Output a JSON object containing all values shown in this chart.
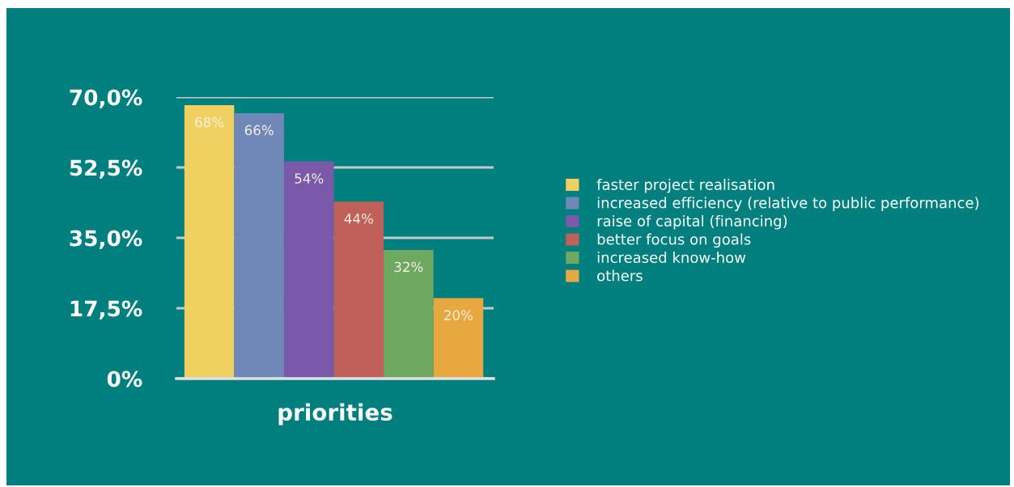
{
  "chart_data": {
    "type": "bar",
    "categories": [
      null
    ],
    "series": [
      {
        "name": "faster project realisation",
        "color": "#f0d060",
        "values": [
          68
        ],
        "value_labels": [
          "68%"
        ]
      },
      {
        "name": "increased efficiency (relative to public performance)",
        "color": "#6f88b8",
        "values": [
          66
        ],
        "value_labels": [
          "66%"
        ]
      },
      {
        "name": "raise of capital (financing)",
        "color": "#7a58aa",
        "values": [
          54
        ],
        "value_labels": [
          "54%"
        ]
      },
      {
        "name": "better focus on goals",
        "color": "#c0605a",
        "values": [
          44
        ],
        "value_labels": [
          "44%"
        ]
      },
      {
        "name": "increased know-how",
        "color": "#6fa860",
        "values": [
          32
        ],
        "value_labels": [
          "32%"
        ]
      },
      {
        "name": "others",
        "color": "#e8a840",
        "values": [
          20
        ],
        "value_labels": [
          "20%"
        ]
      }
    ],
    "xlabel": "priorities",
    "ylim": [
      0,
      70
    ],
    "yticks": [
      {
        "value": 0,
        "label": "0%"
      },
      {
        "value": 17.5,
        "label": "17,5%"
      },
      {
        "value": 35,
        "label": "35,0%"
      },
      {
        "value": 52.5,
        "label": "52,5%"
      },
      {
        "value": 70,
        "label": "70,0%"
      }
    ],
    "grid": "y",
    "legend": "right",
    "tick_labels": "y"
  }
}
